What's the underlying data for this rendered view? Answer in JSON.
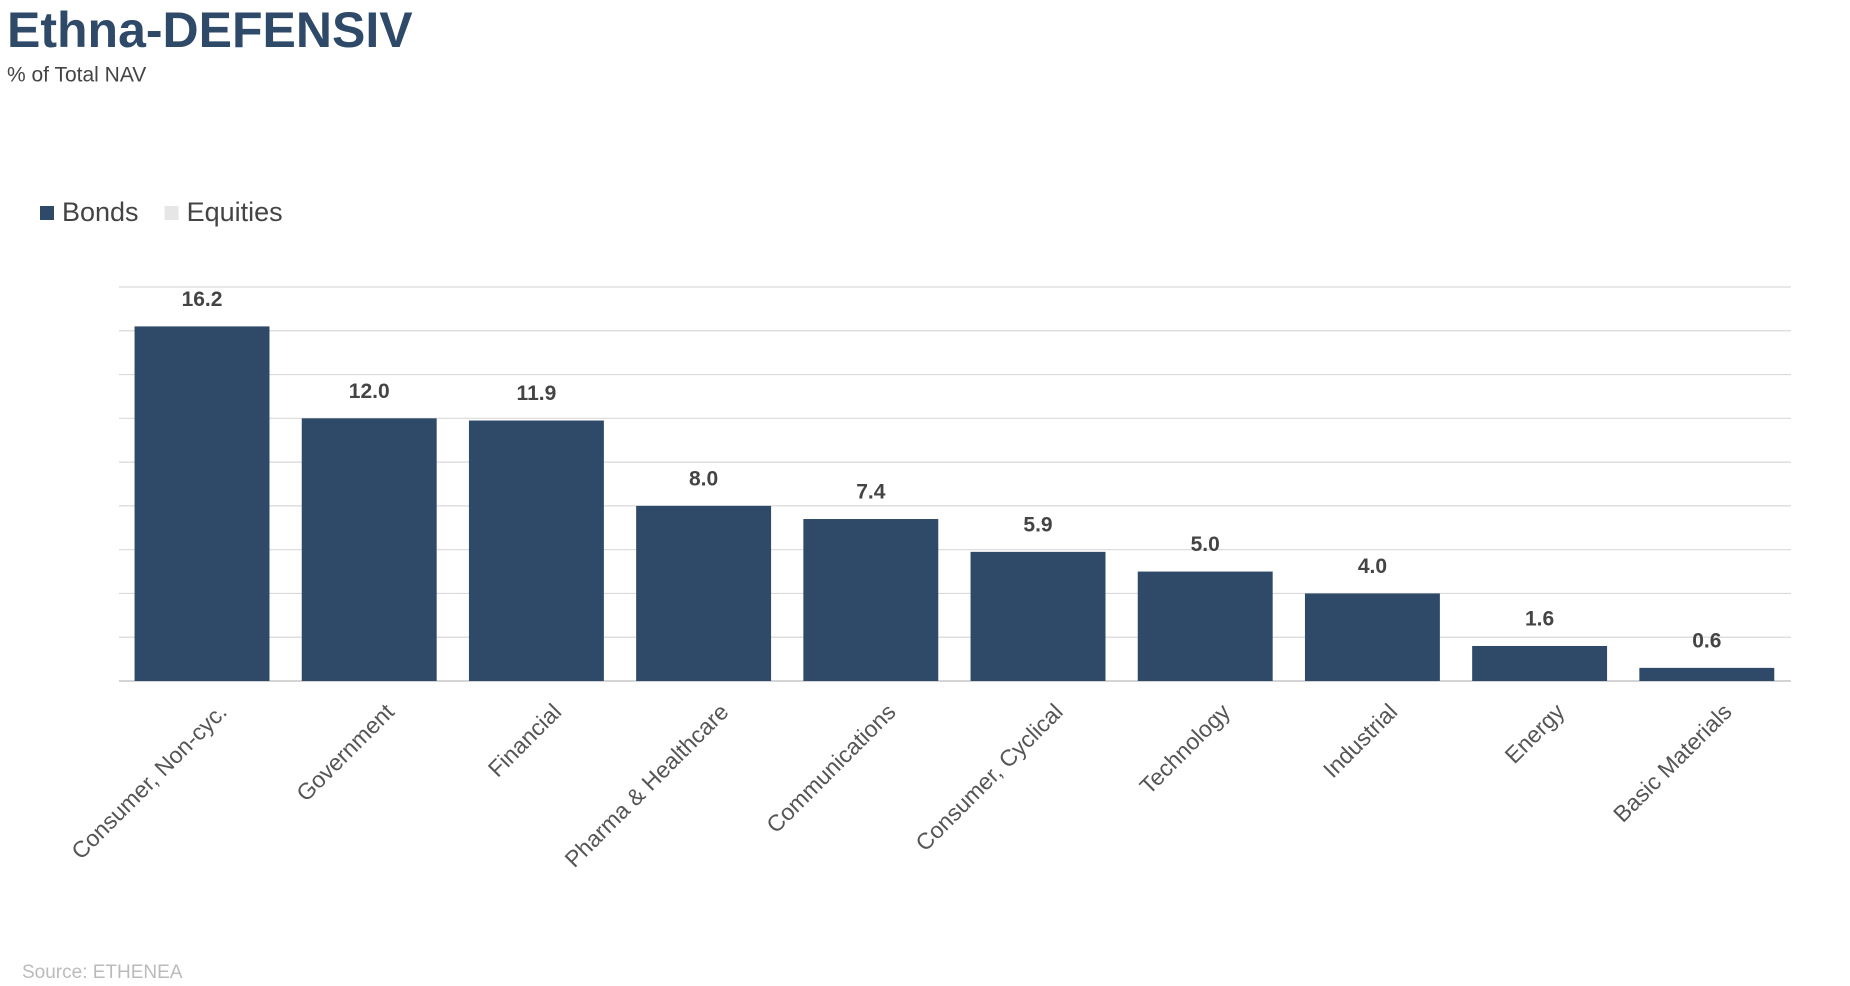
{
  "chart_data": {
    "type": "stacked_bar",
    "title": "Ethna-DEFENSIV",
    "subtitle": "% of Total NAV",
    "source": "Source: ETHENEA",
    "categories": [
      "Consumer, Non-cyc.",
      "Government",
      "Financial",
      "Pharma & Healthcare",
      "Communications",
      "Consumer, Cyclical",
      "Technology",
      "Industrial",
      "Energy",
      "Basic Materials"
    ],
    "series": [
      {
        "name": "Bonds",
        "color": "#2e4a68",
        "values": [
          16.2,
          12.0,
          11.9,
          8.0,
          7.4,
          5.9,
          5.0,
          4.0,
          1.6,
          0.6
        ],
        "value_labels": [
          "16.2",
          "12.0",
          "11.9",
          "8.0",
          "7.4",
          "5.9",
          "5.0",
          "4.0",
          "1.6",
          "0.6"
        ]
      },
      {
        "name": "Equities",
        "color": "#e6e6e6",
        "values": [
          0,
          0,
          0,
          0,
          0,
          0,
          0,
          0,
          0,
          0
        ]
      }
    ],
    "ylim": [
      0,
      18
    ],
    "yticks": [
      0,
      2,
      4,
      6,
      8,
      10,
      12,
      14,
      16,
      18
    ],
    "grid": true,
    "legend": "top-left"
  }
}
